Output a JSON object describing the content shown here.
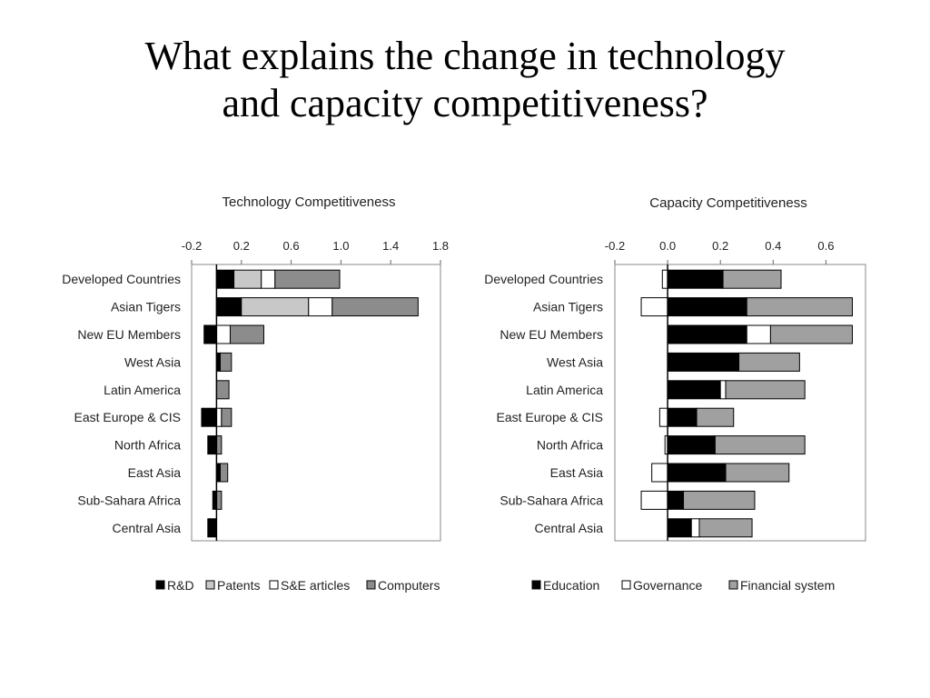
{
  "slide": {
    "title_line1": "What explains the change in technology",
    "title_line2": "and capacity competitiveness?"
  },
  "colors": {
    "black": "#000000",
    "light_gray": "#c8c8c8",
    "white": "#ffffff",
    "mid_gray": "#8c8c8c",
    "light_mid_gray": "#a0a0a0"
  },
  "chart_data": [
    {
      "type": "bar",
      "orientation": "horizontal-stacked",
      "title": "Technology Competitiveness",
      "xlim": [
        -0.2,
        1.8
      ],
      "ticks": [
        -0.2,
        0.2,
        0.6,
        1.0,
        1.4,
        1.8
      ],
      "tick_labels": [
        "-0.2",
        "0.2",
        "0.6",
        "1.0",
        "1.4",
        "1.8"
      ],
      "categories": [
        "Developed Countries",
        "Asian Tigers",
        "New EU Members",
        "West Asia",
        "Latin America",
        "East Europe & CIS",
        "North Africa",
        "East Asia",
        "Sub-Sahara Africa",
        "Central Asia"
      ],
      "legend_position": "bottom",
      "series": [
        {
          "name": "R&D",
          "color_key": "black",
          "values": [
            0.14,
            0.2,
            -0.1,
            0.03,
            0.0,
            -0.12,
            -0.07,
            0.03,
            -0.03,
            -0.07
          ]
        },
        {
          "name": "Patents",
          "color_key": "light_gray",
          "values": [
            0.22,
            0.54,
            0.0,
            0.0,
            0.0,
            0.0,
            0.0,
            0.0,
            0.0,
            0.0
          ]
        },
        {
          "name": "S&E articles",
          "color_key": "white",
          "values": [
            0.11,
            0.19,
            0.11,
            0.0,
            0.0,
            0.04,
            0.0,
            0.0,
            0.0,
            0.0
          ]
        },
        {
          "name": "Computers",
          "color_key": "mid_gray",
          "values": [
            0.52,
            0.69,
            0.27,
            0.09,
            0.1,
            0.08,
            0.04,
            0.06,
            0.04,
            0.0
          ]
        }
      ]
    },
    {
      "type": "bar",
      "orientation": "horizontal-stacked",
      "title": "Capacity Competitiveness",
      "xlim": [
        -0.2,
        0.75
      ],
      "ticks": [
        -0.2,
        0.0,
        0.2,
        0.4,
        0.6
      ],
      "tick_labels": [
        "-0.2",
        "0.0",
        "0.2",
        "0.4",
        "0.6"
      ],
      "categories": [
        "Developed Countries",
        "Asian Tigers",
        "New EU Members",
        "West Asia",
        "Latin America",
        "East Europe & CIS",
        "North Africa",
        "East Asia",
        "Sub-Sahara Africa",
        "Central Asia"
      ],
      "legend_position": "bottom",
      "series": [
        {
          "name": "Education",
          "color_key": "black",
          "values": [
            0.21,
            0.3,
            0.3,
            0.27,
            0.2,
            0.11,
            0.18,
            0.22,
            0.06,
            0.09
          ]
        },
        {
          "name": "Governance",
          "color_key": "white",
          "values": [
            -0.02,
            -0.1,
            0.09,
            0.0,
            0.02,
            -0.03,
            -0.01,
            -0.06,
            -0.1,
            0.03
          ]
        },
        {
          "name": "Financial system",
          "color_key": "light_mid_gray",
          "values": [
            0.22,
            0.4,
            0.31,
            0.23,
            0.3,
            0.14,
            0.34,
            0.24,
            0.27,
            0.2
          ]
        }
      ]
    }
  ]
}
